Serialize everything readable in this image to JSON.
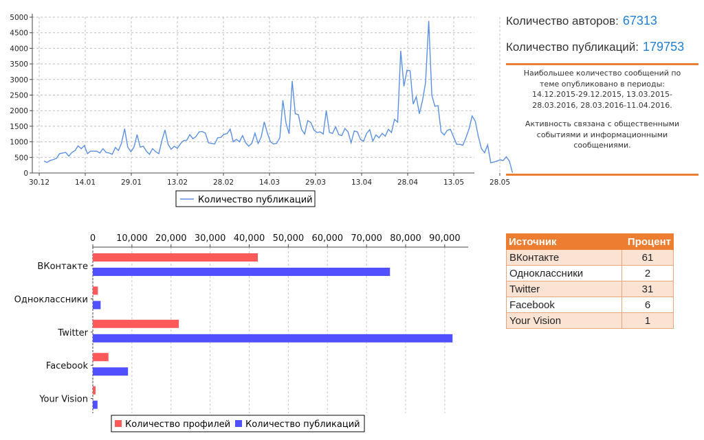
{
  "chart_data": [
    {
      "type": "line",
      "title": "",
      "xlabel": "",
      "ylabel": "",
      "x_ticks": [
        "30.12",
        "14.01",
        "29.01",
        "13.02",
        "28.02",
        "14.03",
        "29.03",
        "13.04",
        "28.04",
        "13.05",
        "28.05"
      ],
      "x_range": [
        "30.12",
        "31.05"
      ],
      "ylim": [
        0,
        5000
      ],
      "y_ticks": [
        0,
        500,
        1000,
        1500,
        2000,
        2500,
        3000,
        3500,
        4000,
        4500,
        5000
      ],
      "grid": true,
      "legend": "bottom",
      "series": [
        {
          "name": "Количество публикаций",
          "color": "#5b8fe0",
          "values": [
            380,
            340,
            400,
            430,
            470,
            620,
            640,
            660,
            540,
            660,
            720,
            870,
            780,
            880,
            620,
            700,
            700,
            700,
            640,
            780,
            660,
            640,
            600,
            820,
            720,
            960,
            1420,
            830,
            680,
            830,
            1230,
            830,
            860,
            700,
            600,
            780,
            680,
            620,
            1040,
            1380,
            920,
            760,
            860,
            790,
            940,
            1040,
            1050,
            1230,
            1100,
            1170,
            1320,
            1330,
            1280,
            970,
            950,
            930,
            1130,
            1140,
            1240,
            1260,
            1410,
            1000,
            1080,
            1000,
            1200,
            970,
            860,
            950,
            1280,
            950,
            1150,
            1640,
            1280,
            1000,
            930,
            950,
            1130,
            2330,
            1600,
            1260,
            2950,
            1900,
            1870,
            1400,
            1250,
            1680,
            1620,
            1380,
            1300,
            1320,
            1250,
            2000,
            1300,
            1270,
            1480,
            1230,
            1200,
            1430,
            1320,
            970,
            1350,
            1320,
            1080,
            1020,
            1270,
            1390,
            1020,
            1220,
            1130,
            1270,
            1180,
            1400,
            1300,
            1720,
            1630,
            3920,
            2780,
            3300,
            3280,
            2210,
            2450,
            1900,
            2320,
            2900,
            4880,
            2500,
            2140,
            2160,
            1320,
            1220,
            1370,
            1400,
            1160,
            920,
            920,
            890,
            1130,
            1410,
            1830,
            1670,
            1170,
            780,
            650,
            900,
            330,
            350,
            380,
            420,
            400,
            520,
            380,
            10
          ]
        }
      ]
    },
    {
      "type": "bar",
      "orientation": "horizontal",
      "title": "",
      "xlabel": "",
      "ylabel": "",
      "categories": [
        "ВКонтакте",
        "Одноклассники",
        "Twitter",
        "Facebook",
        "Your Vision"
      ],
      "xlim": [
        0,
        96000
      ],
      "x_ticks": [
        "0",
        "10,000",
        "20,000",
        "30,000",
        "40,000",
        "50,000",
        "60,000",
        "70,000",
        "80,000",
        "90,000"
      ],
      "x_tick_values": [
        0,
        10000,
        20000,
        30000,
        40000,
        50000,
        60000,
        70000,
        80000,
        90000
      ],
      "legend": "bottom",
      "series": [
        {
          "name": "Количество профилей",
          "color": "#ff5a5a",
          "values": [
            42200,
            1300,
            22000,
            4000,
            700
          ]
        },
        {
          "name": "Количество публикаций",
          "color": "#5050ff",
          "values": [
            76000,
            2000,
            92000,
            9000,
            1200
          ]
        }
      ]
    }
  ],
  "stats": {
    "authors_label": "Количество авторов:",
    "authors_value": "67313",
    "publications_label": "Количество публикаций:",
    "publications_value": "179753"
  },
  "info": {
    "paragraph1_lines": [
      "Наибольшее количество сообщений по",
      "теме опубликовано в периоды:",
      "14.12.2015-29.12.2015, 13.03.2015-",
      "28.03.2016, 28.03.2016-11.04.2016."
    ],
    "paragraph2_lines": [
      "Активность связана с общественными",
      "событиями и информационными",
      "сообщениями."
    ]
  },
  "table": {
    "header_source": "Источник",
    "header_percent": "Процент",
    "rows": [
      {
        "source": "ВКонтакте",
        "percent": "61"
      },
      {
        "source": "Одноклассники",
        "percent": "2"
      },
      {
        "source": "Twitter",
        "percent": "31"
      },
      {
        "source": "Facebook",
        "percent": "6"
      },
      {
        "source": "Your Vision",
        "percent": "1"
      }
    ]
  },
  "colors": {
    "accent": "#ed7d31",
    "stat_value": "#1f7ed6"
  }
}
